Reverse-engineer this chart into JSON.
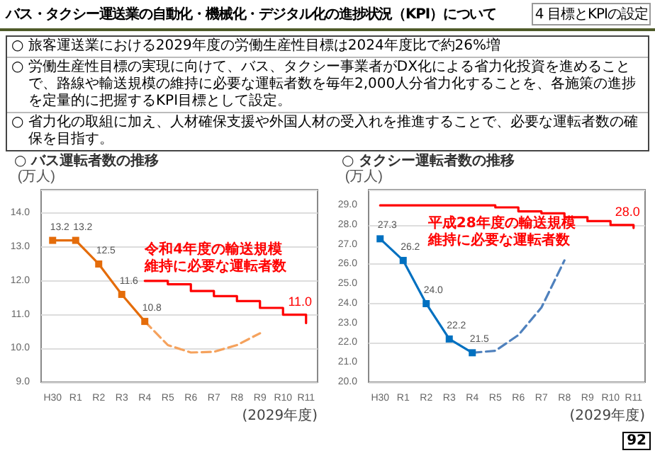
{
  "chart_data": [
    {
      "type": "other",
      "title": "バス・タクシー運送業の自動化・機械化・デジタル化の進捗状況（KPI）について",
      "annotations": [
        "4 目標とKPIの設定",
        "○ 旅客運送業における2029年度の労働生産性目標は2024年度比で約26%増",
        "○ 労働生産性目標の実現に向けて、バス、タクシー事業者がDX化による省力化投資を進めることで、路線や輸送規模の維持に必要な運転者数を毎年2,000人分省力化することを、各施策の進捗を定量的に把握するKPI目標として設定。",
        "○ 省力化の取組に加え、人材確保支援や外国人材の受入れを推進することで、必要な運転者数の確保を目指す。",
        "92"
      ]
    },
    {
      "type": "line",
      "title": "○ バス運転者数の推移",
      "ylabel": "(万人)",
      "annotations": [
        "(2029年度)"
      ],
      "grid": "y",
      "categories": [
        "H30",
        "R1",
        "R2",
        "R3",
        "R4",
        "R5",
        "R6",
        "R7",
        "R8",
        "R9",
        "R10",
        "R11"
      ],
      "ylim": [
        9,
        14.7
      ],
      "yticks": [
        {
          "value": 9,
          "label": "9.0"
        },
        {
          "value": 10,
          "label": "10.0"
        },
        {
          "value": 11,
          "label": "11.0"
        },
        {
          "value": 12,
          "label": "12.0"
        },
        {
          "value": 13,
          "label": "13.0"
        },
        {
          "value": 14,
          "label": "14.0"
        }
      ],
      "series": [
        {
          "color": "#e46c0a",
          "values": [
            13.2,
            13.2,
            12.5,
            11.6,
            10.8,
            null,
            null,
            null,
            null,
            null,
            null,
            null
          ],
          "marker": "square",
          "value_labels": [
            "13.2",
            "13.2",
            "12.5",
            "11.6",
            "10.8",
            null,
            null,
            null,
            null,
            null,
            null,
            null
          ]
        },
        {
          "name": "令和4年度の輸送規模維持に必要な運転者数",
          "type": "step",
          "color": "#ff0000",
          "values": [
            null,
            null,
            null,
            null,
            12.0,
            11.9,
            11.7,
            11.55,
            11.4,
            11.2,
            11.0,
            10.75
          ],
          "marker": "none",
          "value_labels": [
            null,
            null,
            null,
            null,
            null,
            null,
            null,
            null,
            null,
            null,
            "11.0",
            null
          ]
        },
        {
          "color": "#f5a25d",
          "values": [
            null,
            null,
            null,
            null,
            10.8,
            10.1,
            9.88,
            9.9,
            10.1,
            10.45,
            null,
            null
          ],
          "marker": "none",
          "line_style": "dashed"
        }
      ]
    },
    {
      "type": "line",
      "title": "○ タクシー運転者数の推移",
      "ylabel": "(万人)",
      "annotations": [
        "(2029年度)"
      ],
      "grid": "y",
      "categories": [
        "H30",
        "R1",
        "R2",
        "R3",
        "R4",
        "R5",
        "R6",
        "R7",
        "R8",
        "R9",
        "R10",
        "R11"
      ],
      "ylim": [
        20,
        29.8
      ],
      "yticks": [
        {
          "value": 20,
          "label": "20.0"
        },
        {
          "value": 21,
          "label": "21.0"
        },
        {
          "value": 22,
          "label": "22.0"
        },
        {
          "value": 23,
          "label": "23.0"
        },
        {
          "value": 24,
          "label": "24.0"
        },
        {
          "value": 25,
          "label": "25.0"
        },
        {
          "value": 26,
          "label": "26.0"
        },
        {
          "value": 27,
          "label": "27.0"
        },
        {
          "value": 28,
          "label": "28.0"
        },
        {
          "value": 29,
          "label": "29.0"
        }
      ],
      "series": [
        {
          "color": "#0070c0",
          "values": [
            27.3,
            26.2,
            24.0,
            22.2,
            21.5,
            null,
            null,
            null,
            null,
            null,
            null,
            null
          ],
          "marker": "square",
          "value_labels": [
            "27.3",
            "26.2",
            "24.0",
            "22.2",
            "21.5",
            null,
            null,
            null,
            null,
            null,
            null,
            null
          ]
        },
        {
          "name": "平成28年度の輸送規模維持に必要な運転者数",
          "type": "step",
          "color": "#ff0000",
          "values": [
            29.0,
            29.0,
            29.0,
            29.0,
            29.0,
            28.9,
            28.7,
            28.6,
            28.4,
            28.2,
            28.0,
            27.85
          ],
          "marker": "none",
          "value_labels": [
            null,
            null,
            null,
            null,
            null,
            null,
            null,
            null,
            null,
            null,
            "28.0",
            null
          ]
        },
        {
          "color": "#4f81bd",
          "values": [
            null,
            null,
            null,
            null,
            21.5,
            21.6,
            22.4,
            23.8,
            26.2,
            null,
            null,
            null
          ],
          "marker": "none",
          "line_style": "dashed"
        }
      ]
    }
  ]
}
